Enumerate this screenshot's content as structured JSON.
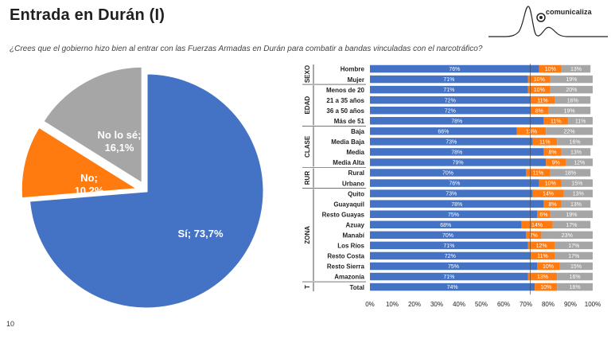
{
  "title": "Entrada en Durán (I)",
  "question": "¿Crees que el gobierno hizo bien al entrar con las Fuerzas Armadas en Durán para combatir a bandas vinculadas con el narcotráfico?",
  "logo_text": "comunicaliza",
  "page_number": "10",
  "colors": {
    "si": "#4472C4",
    "no": "#FF7A0F",
    "nose": "#A6A6A6",
    "text": "#222222"
  },
  "chart_data": [
    {
      "type": "pie",
      "slices": [
        {
          "name": "Sí",
          "value": 73.7,
          "label": "Sí; 73,7%",
          "color": "#4472C4"
        },
        {
          "name": "No",
          "value": 10.2,
          "label": "No;\n10,2%",
          "color": "#FF7A0F"
        },
        {
          "name": "No lo sé",
          "value": 16.1,
          "label": "No lo sé;\n16,1%",
          "color": "#A6A6A6"
        }
      ]
    },
    {
      "type": "bar",
      "stacked": "100%",
      "orientation": "horizontal",
      "xticks": [
        "0%",
        "10%",
        "20%",
        "30%",
        "40%",
        "50%",
        "60%",
        "70%",
        "80%",
        "90%",
        "100%"
      ],
      "groups": [
        {
          "name": "SEXO",
          "rows": [
            {
              "label": "Hombre",
              "values": [
                76,
                10,
                13
              ]
            },
            {
              "label": "Mujer",
              "values": [
                71,
                10,
                19
              ]
            }
          ]
        },
        {
          "name": "EDAD",
          "rows": [
            {
              "label": "Menos de 20",
              "values": [
                71,
                10,
                20
              ]
            },
            {
              "label": "21 a 35 años",
              "values": [
                72,
                11,
                16
              ]
            },
            {
              "label": "36 a 50 años",
              "values": [
                72,
                8,
                19
              ]
            },
            {
              "label": "Más de 51",
              "values": [
                78,
                11,
                11
              ]
            }
          ]
        },
        {
          "name": "CLASE",
          "rows": [
            {
              "label": "Baja",
              "values": [
                66,
                13,
                22
              ]
            },
            {
              "label": "Media Baja",
              "values": [
                73,
                11,
                16
              ]
            },
            {
              "label": "Media",
              "values": [
                78,
                8,
                13
              ]
            },
            {
              "label": "Media Alta",
              "values": [
                79,
                9,
                12
              ]
            }
          ]
        },
        {
          "name": "RUR",
          "rows": [
            {
              "label": "Rural",
              "values": [
                70,
                11,
                18
              ]
            },
            {
              "label": "Urbano",
              "values": [
                76,
                10,
                15
              ]
            }
          ]
        },
        {
          "name": "ZONA",
          "rows": [
            {
              "label": "Quito",
              "values": [
                73,
                14,
                13
              ]
            },
            {
              "label": "Guayaquil",
              "values": [
                78,
                8,
                13
              ]
            },
            {
              "label": "Resto Guayas",
              "values": [
                75,
                6,
                19
              ]
            },
            {
              "label": "Azuay",
              "values": [
                68,
                14,
                17
              ]
            },
            {
              "label": "Manabí",
              "values": [
                70,
                7,
                23
              ]
            },
            {
              "label": "Los Ríos",
              "values": [
                71,
                12,
                17
              ]
            },
            {
              "label": "Resto Costa",
              "values": [
                72,
                11,
                17
              ]
            },
            {
              "label": "Resto Sierra",
              "values": [
                75,
                10,
                15
              ]
            },
            {
              "label": "Amazonía",
              "values": [
                71,
                13,
                16
              ]
            }
          ]
        },
        {
          "name": "T",
          "rows": [
            {
              "label": "Total",
              "values": [
                74,
                10,
                16
              ]
            }
          ]
        }
      ]
    }
  ]
}
